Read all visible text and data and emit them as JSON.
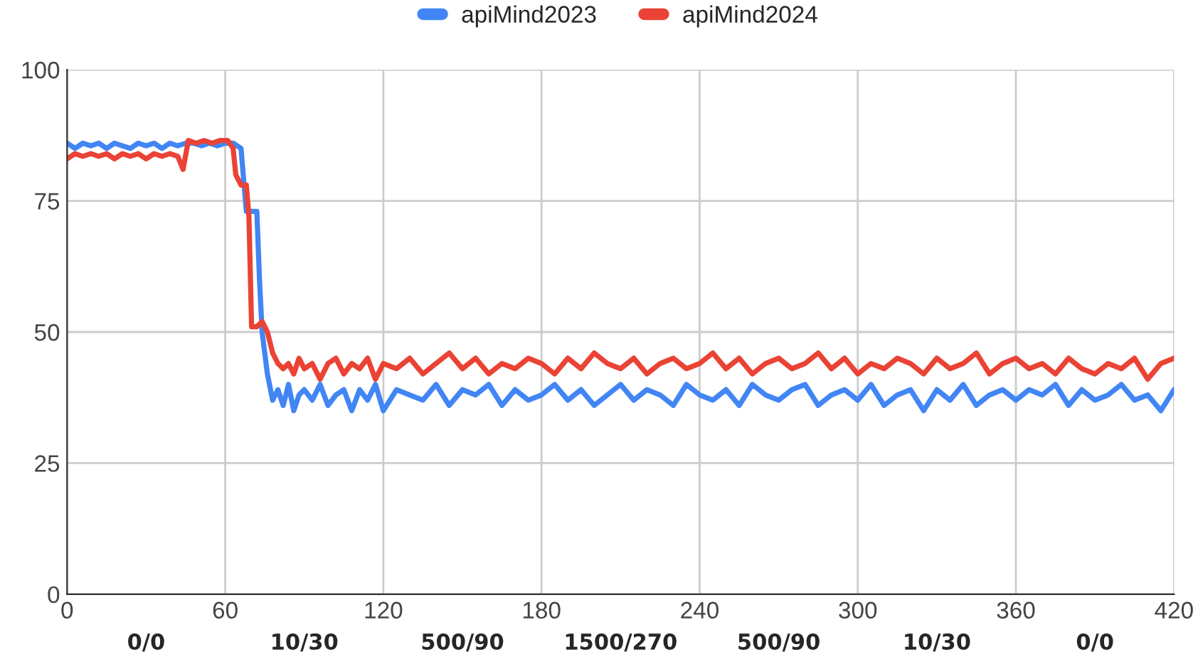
{
  "chart_data": {
    "type": "line",
    "legend": "top",
    "grid": true,
    "marker": "none",
    "line_style": "solid",
    "xlim": [
      0,
      420
    ],
    "ylim": [
      0,
      100
    ],
    "xticks": [
      0,
      60,
      120,
      180,
      240,
      300,
      360,
      420
    ],
    "yticks": [
      0,
      25,
      50,
      75,
      100
    ],
    "annotations": [
      "0/0",
      "10/30",
      "500/90",
      "1500/270",
      "500/90",
      "10/30",
      "0/0"
    ],
    "series": [
      {
        "name": "apiMind2023",
        "color": "#4285f4",
        "x": [
          0,
          3,
          6,
          9,
          12,
          15,
          18,
          21,
          24,
          27,
          30,
          33,
          36,
          39,
          42,
          45,
          48,
          51,
          54,
          57,
          60,
          63,
          66,
          68,
          70,
          72,
          73,
          74,
          76,
          78,
          80,
          82,
          84,
          86,
          88,
          90,
          93,
          96,
          99,
          102,
          105,
          108,
          111,
          114,
          117,
          120,
          125,
          130,
          135,
          140,
          145,
          150,
          155,
          160,
          165,
          170,
          175,
          180,
          185,
          190,
          195,
          200,
          205,
          210,
          215,
          220,
          225,
          230,
          235,
          240,
          245,
          250,
          255,
          260,
          265,
          270,
          275,
          280,
          285,
          290,
          295,
          300,
          305,
          310,
          315,
          320,
          325,
          330,
          335,
          340,
          345,
          350,
          355,
          360,
          365,
          370,
          375,
          380,
          385,
          390,
          395,
          400,
          405,
          410,
          415,
          420
        ],
        "values": [
          86,
          85,
          86,
          85.5,
          86,
          85,
          86,
          85.5,
          85,
          86,
          85.5,
          86,
          85,
          86,
          85.5,
          86,
          86,
          85.5,
          86,
          85.5,
          86,
          86,
          85,
          73,
          73,
          73,
          60,
          50,
          42,
          37,
          39,
          36,
          40,
          35,
          38,
          39,
          37,
          40,
          36,
          38,
          39,
          35,
          39,
          37,
          40,
          35,
          39,
          38,
          37,
          40,
          36,
          39,
          38,
          40,
          36,
          39,
          37,
          38,
          40,
          37,
          39,
          36,
          38,
          40,
          37,
          39,
          38,
          36,
          40,
          38,
          37,
          39,
          36,
          40,
          38,
          37,
          39,
          40,
          36,
          38,
          39,
          37,
          40,
          36,
          38,
          39,
          35,
          39,
          37,
          40,
          36,
          38,
          39,
          37,
          39,
          38,
          40,
          36,
          39,
          37,
          38,
          40,
          37,
          38,
          35,
          39
        ]
      },
      {
        "name": "apiMind2024",
        "color": "#ea4335",
        "x": [
          0,
          3,
          6,
          9,
          12,
          15,
          18,
          21,
          24,
          27,
          30,
          33,
          36,
          39,
          42,
          44,
          46,
          49,
          52,
          55,
          58,
          61,
          63,
          64,
          66,
          68,
          69,
          70,
          72,
          74,
          76,
          78,
          80,
          82,
          84,
          86,
          88,
          90,
          93,
          96,
          99,
          102,
          105,
          108,
          111,
          114,
          117,
          120,
          125,
          130,
          135,
          140,
          145,
          150,
          155,
          160,
          165,
          170,
          175,
          180,
          185,
          190,
          195,
          200,
          205,
          210,
          215,
          220,
          225,
          230,
          235,
          240,
          245,
          250,
          255,
          260,
          265,
          270,
          275,
          280,
          285,
          290,
          295,
          300,
          305,
          310,
          315,
          320,
          325,
          330,
          335,
          340,
          345,
          350,
          355,
          360,
          365,
          370,
          375,
          380,
          385,
          390,
          395,
          400,
          405,
          410,
          415,
          420
        ],
        "values": [
          83,
          84,
          83.5,
          84,
          83.5,
          84,
          83,
          84,
          83.5,
          84,
          83,
          84,
          83.5,
          84,
          83.5,
          81,
          86.5,
          86,
          86.5,
          86,
          86.5,
          86.5,
          85,
          80,
          78,
          78,
          72,
          51,
          51,
          52,
          50,
          46,
          44,
          43,
          44,
          42,
          45,
          43,
          44,
          41,
          44,
          45,
          42,
          44,
          43,
          45,
          41,
          44,
          43,
          45,
          42,
          44,
          46,
          43,
          45,
          42,
          44,
          43,
          45,
          44,
          42,
          45,
          43,
          46,
          44,
          43,
          45,
          42,
          44,
          45,
          43,
          44,
          46,
          43,
          45,
          42,
          44,
          45,
          43,
          44,
          46,
          43,
          45,
          42,
          44,
          43,
          45,
          44,
          42,
          45,
          43,
          44,
          46,
          42,
          44,
          45,
          43,
          44,
          42,
          45,
          43,
          42,
          44,
          43,
          45,
          41,
          44,
          45
        ]
      }
    ]
  }
}
